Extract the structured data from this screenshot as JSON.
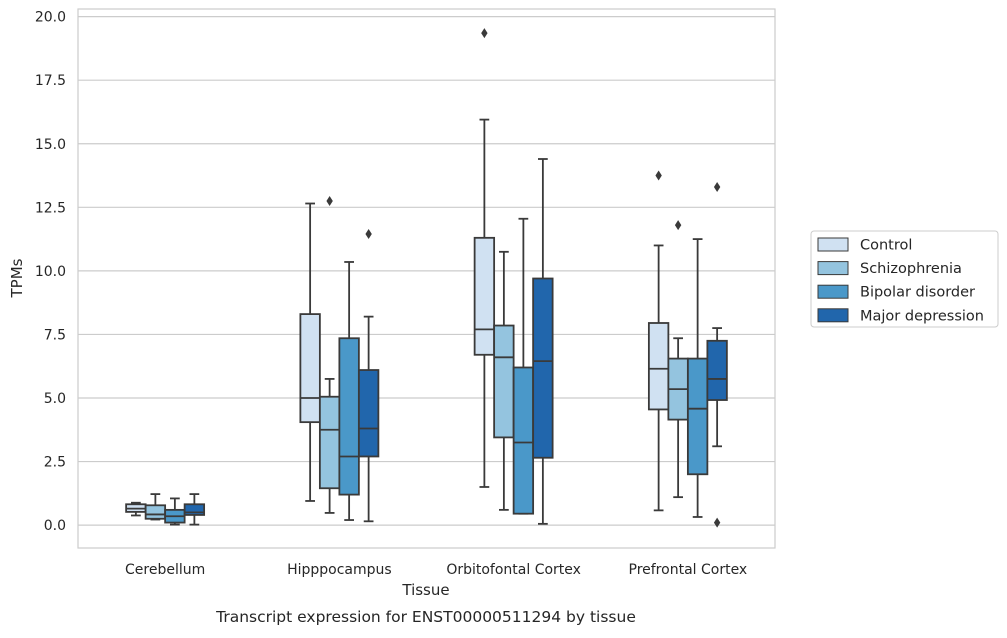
{
  "chart_data": {
    "type": "boxplot",
    "xlabel": "Tissue",
    "ylabel": "TPMs",
    "caption": "Transcript expression for ENST00000511294 by tissue",
    "categories": [
      "Cerebellum",
      "Hipppocampus",
      "Orbitofontal Cortex",
      "Prefrontal Cortex"
    ],
    "ylim": [
      -0.9,
      20.3
    ],
    "yticks": [
      0.0,
      2.5,
      5.0,
      7.5,
      10.0,
      12.5,
      15.0,
      17.5,
      20.0
    ],
    "ytick_labels": [
      "0.0",
      "2.5",
      "5.0",
      "7.5",
      "10.0",
      "12.5",
      "15.0",
      "17.5",
      "20.0"
    ],
    "grid": "horizontal",
    "legend_position": "right",
    "series": [
      {
        "name": "Control",
        "color": "#d0e1f2",
        "boxes": [
          {
            "whislo": 0.38,
            "q1": 0.52,
            "med": 0.65,
            "q3": 0.82,
            "whishi": 0.88,
            "fliers": []
          },
          {
            "whislo": 0.95,
            "q1": 4.05,
            "med": 5.0,
            "q3": 8.3,
            "whishi": 12.65,
            "fliers": []
          },
          {
            "whislo": 1.5,
            "q1": 6.7,
            "med": 7.7,
            "q3": 11.3,
            "whishi": 15.95,
            "fliers": [
              19.35
            ]
          },
          {
            "whislo": 0.58,
            "q1": 4.55,
            "med": 6.15,
            "q3": 7.95,
            "whishi": 11.0,
            "fliers": [
              13.75
            ]
          }
        ]
      },
      {
        "name": "Schizophrenia",
        "color": "#94c4df",
        "boxes": [
          {
            "whislo": 0.22,
            "q1": 0.25,
            "med": 0.42,
            "q3": 0.78,
            "whishi": 1.22,
            "fliers": []
          },
          {
            "whislo": 0.48,
            "q1": 1.45,
            "med": 3.75,
            "q3": 5.05,
            "whishi": 5.75,
            "fliers": [
              12.75
            ]
          },
          {
            "whislo": 0.6,
            "q1": 3.45,
            "med": 6.6,
            "q3": 7.85,
            "whishi": 10.75,
            "fliers": []
          },
          {
            "whislo": 1.1,
            "q1": 4.15,
            "med": 5.35,
            "q3": 6.55,
            "whishi": 7.35,
            "fliers": [
              11.8
            ]
          }
        ]
      },
      {
        "name": "Bipolar disorder",
        "color": "#4a98c9",
        "boxes": [
          {
            "whislo": 0.02,
            "q1": 0.1,
            "med": 0.35,
            "q3": 0.6,
            "whishi": 1.05,
            "fliers": []
          },
          {
            "whislo": 0.2,
            "q1": 1.2,
            "med": 2.7,
            "q3": 7.35,
            "whishi": 10.35,
            "fliers": []
          },
          {
            "whislo": 0.45,
            "q1": 0.45,
            "med": 3.25,
            "q3": 6.2,
            "whishi": 12.05,
            "fliers": []
          },
          {
            "whislo": 0.32,
            "q1": 2.0,
            "med": 4.58,
            "q3": 6.55,
            "whishi": 11.25,
            "fliers": []
          }
        ]
      },
      {
        "name": "Major depression",
        "color": "#2166ac",
        "boxes": [
          {
            "whislo": 0.02,
            "q1": 0.4,
            "med": 0.5,
            "q3": 0.82,
            "whishi": 1.22,
            "fliers": []
          },
          {
            "whislo": 0.15,
            "q1": 2.7,
            "med": 3.8,
            "q3": 6.1,
            "whishi": 8.2,
            "fliers": [
              11.45
            ]
          },
          {
            "whislo": 0.05,
            "q1": 2.65,
            "med": 6.45,
            "q3": 9.7,
            "whishi": 14.4,
            "fliers": []
          },
          {
            "whislo": 3.1,
            "q1": 4.92,
            "med": 5.75,
            "q3": 7.25,
            "whishi": 7.75,
            "fliers": [
              13.3,
              0.1
            ]
          }
        ]
      }
    ]
  }
}
